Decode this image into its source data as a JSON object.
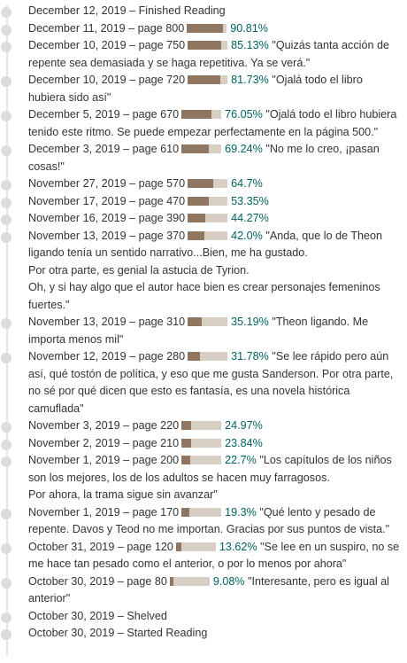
{
  "colors": {
    "bar_fill": "#8f7660",
    "bar_bg": "#d8cfc4",
    "percent": "#00635d",
    "dot": "#dcdcdc",
    "line": "#e5e5e5"
  },
  "entries": [
    {
      "text": "December 12, 2019 – Finished Reading"
    },
    {
      "text": "December 11, 2019 – page 800",
      "progress": 0.9081,
      "percent": "90.81%"
    },
    {
      "text": "December 10, 2019 – page 750",
      "progress": 0.8513,
      "percent": "85.13%",
      "comment": "\"Quizás tanta acción de repente sea demasiada y se haga repetitiva. Ya se verá.\""
    },
    {
      "text": "December 10, 2019 – page 720",
      "progress": 0.8173,
      "percent": "81.73%",
      "comment": "\"Ojalá todo el libro hubiera sido así\""
    },
    {
      "text": "December 5, 2019 – page 670",
      "progress": 0.7605,
      "percent": "76.05%",
      "comment": "\"Ojalá todo el libro hubiera tenido este ritmo. Se puede empezar perfectamente en la página 500.\""
    },
    {
      "text": "December 3, 2019 – page 610",
      "progress": 0.6924,
      "percent": "69.24%",
      "comment": "\"No me lo creo, ¡pasan cosas!\""
    },
    {
      "text": "November 27, 2019 – page 570",
      "progress": 0.647,
      "percent": "64.7%"
    },
    {
      "text": "November 17, 2019 – page 470",
      "progress": 0.5335,
      "percent": "53.35%"
    },
    {
      "text": "November 16, 2019 – page 390",
      "progress": 0.4427,
      "percent": "44.27%"
    },
    {
      "text": "November 13, 2019 – page 370",
      "progress": 0.42,
      "percent": "42.0%",
      "comment": "\"Anda, que lo de Theon ligando tenía un sentido narrativo...Bien, me ha gustado.\nPor otra parte, es genial la astucia de Tyrion.\nOh, y si hay algo que el autor hace bien es crear personajes femeninos fuertes.\""
    },
    {
      "text": "November 13, 2019 – page 310",
      "progress": 0.3519,
      "percent": "35.19%",
      "comment": "\"Theon ligando. Me importa menos mil\""
    },
    {
      "text": "November 12, 2019 – page 280",
      "progress": 0.3178,
      "percent": "31.78%",
      "comment": "\"Se lee rápido pero aún así, qué tostón de política, y eso que me gusta Sanderson. Por otra parte, no sé por qué dicen que esto es fantasía, es una novela histórica camuflada\""
    },
    {
      "text": "November 3, 2019 – page 220",
      "progress": 0.2497,
      "percent": "24.97%"
    },
    {
      "text": "November 2, 2019 – page 210",
      "progress": 0.2384,
      "percent": "23.84%"
    },
    {
      "text": "November 1, 2019 – page 200",
      "progress": 0.227,
      "percent": "22.7%",
      "comment": "\"Los capítulos de los niños son los mejores, los de los adultos se hacen muy farragosos.\nPor ahora, la trama sigue sin avanzar\""
    },
    {
      "text": "November 1, 2019 – page 170",
      "progress": 0.193,
      "percent": "19.3%",
      "comment": "\"Qué lento y pesado de repente. Davos y Teod no me importan. Gracias por sus puntos de vista.\""
    },
    {
      "text": "October 31, 2019 – page 120",
      "progress": 0.1362,
      "percent": "13.62%",
      "comment": "\"Se lee en un suspiro, no se me hace tan pesado como el anterior, o por lo menos por ahora\""
    },
    {
      "text": "October 30, 2019 – page 80",
      "progress": 0.0908,
      "percent": "9.08%",
      "comment": "\"Interesante, pero es igual al anterior\""
    },
    {
      "text": "October 30, 2019 – Shelved"
    },
    {
      "text": "October 30, 2019 – Started Reading"
    }
  ]
}
